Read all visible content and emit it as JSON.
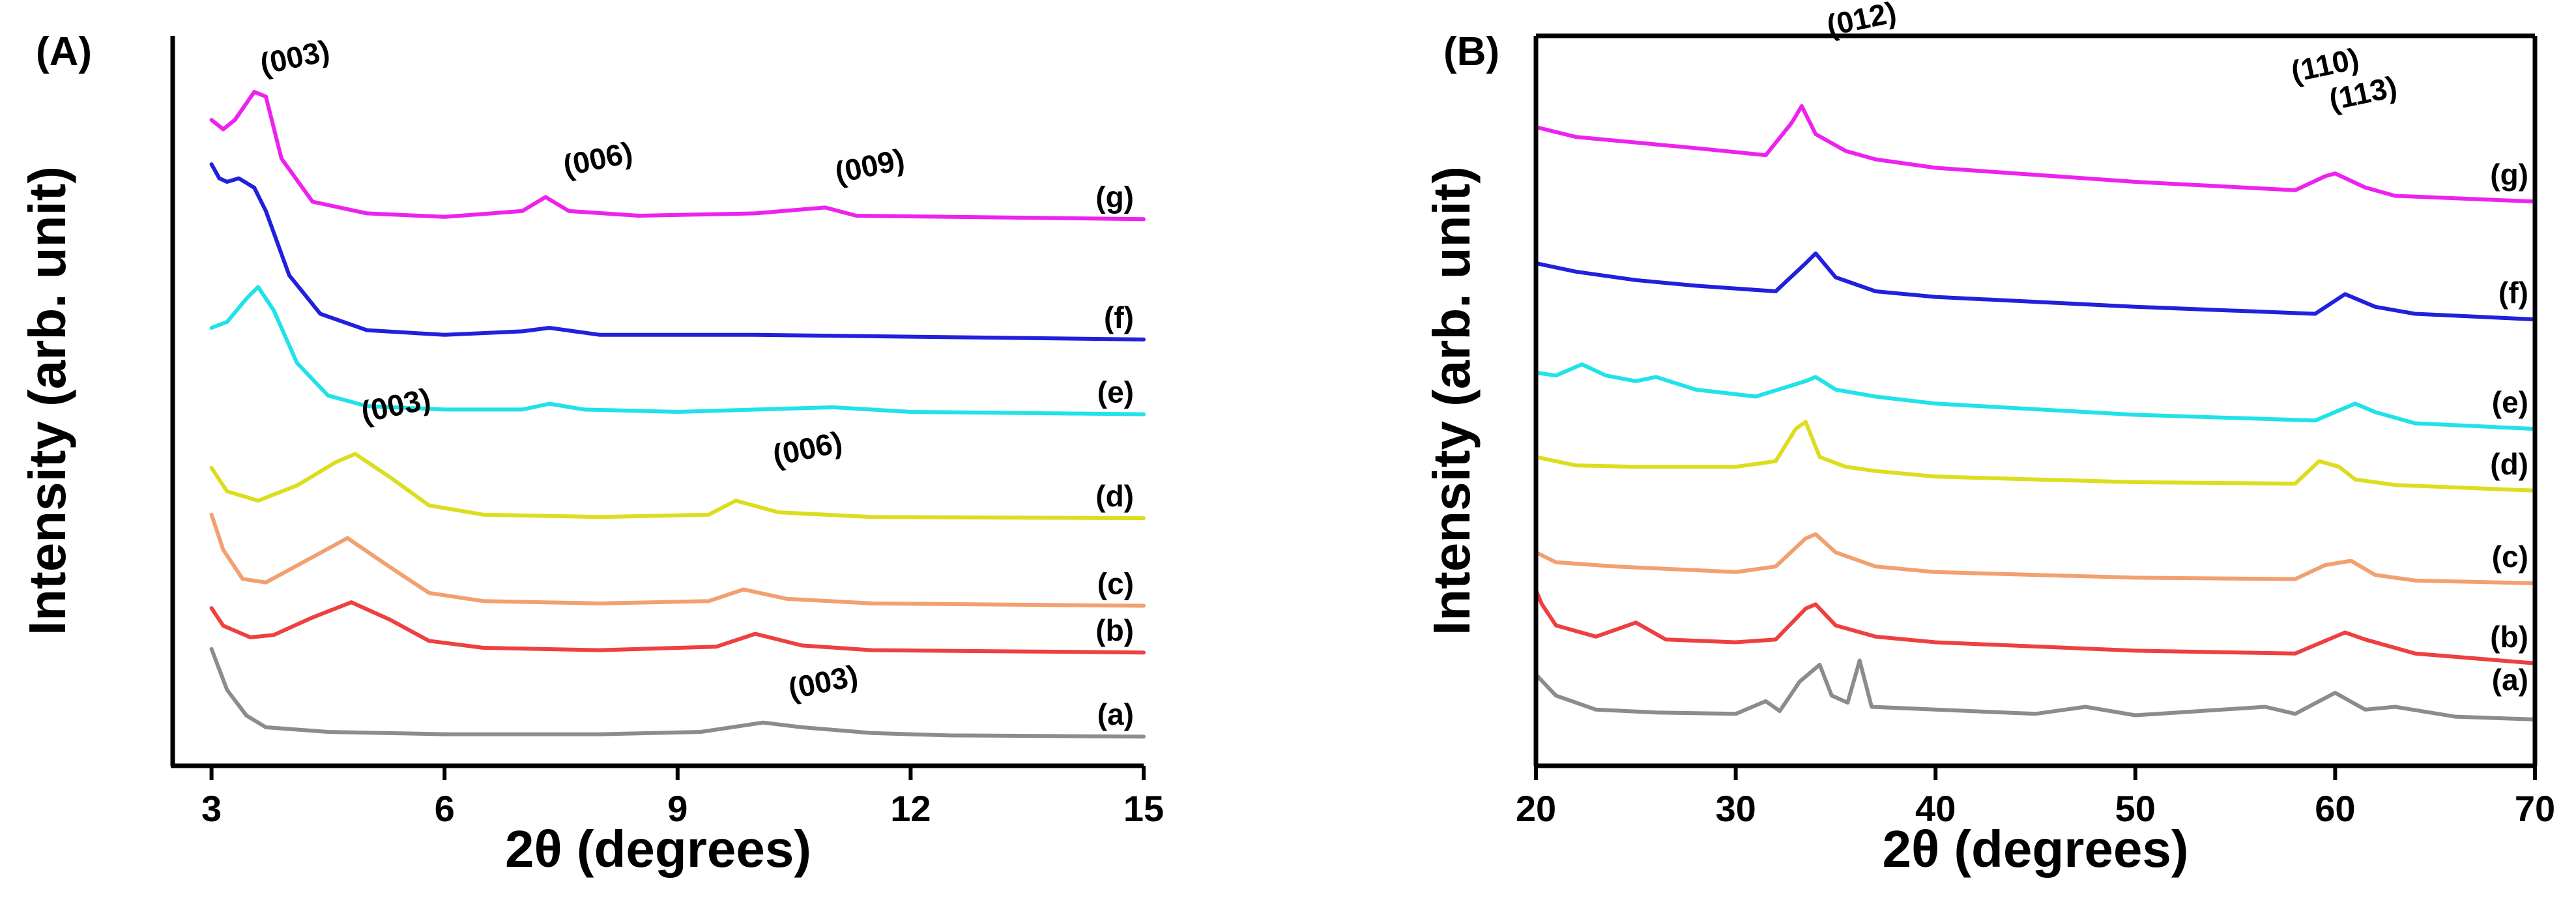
{
  "chart_data": [
    {
      "type": "line",
      "panel_label": "(A)",
      "xlabel": "2θ (degrees)",
      "ylabel": "Intensity (arb. unit)",
      "xlim": [
        2.5,
        15
      ],
      "x_ticks": [
        3,
        6,
        9,
        12,
        15
      ],
      "x_tick_labels": [
        "3",
        "6",
        "9",
        "12",
        "15"
      ],
      "yticks_shown": false,
      "series": [
        {
          "name": "(a)",
          "color": "#8c8c8c",
          "x": [
            3.0,
            3.2,
            3.45,
            3.7,
            4.5,
            6,
            8,
            9.3,
            9.9,
            10.1,
            10.6,
            11.5,
            12.5,
            15
          ],
          "y": [
            0.85,
            0.5,
            0.28,
            0.18,
            0.14,
            0.12,
            0.12,
            0.14,
            0.2,
            0.22,
            0.18,
            0.13,
            0.11,
            0.1
          ]
        },
        {
          "name": "(b)",
          "color": "#ee4040",
          "x": [
            3.0,
            3.15,
            3.5,
            3.8,
            4.3,
            4.8,
            5.3,
            5.8,
            6.5,
            8,
            9.5,
            10.0,
            10.6,
            11.5,
            15
          ],
          "y": [
            1.2,
            1.05,
            0.95,
            0.97,
            1.12,
            1.25,
            1.1,
            0.92,
            0.86,
            0.84,
            0.87,
            0.98,
            0.88,
            0.84,
            0.82
          ]
        },
        {
          "name": "(c)",
          "color": "#f2a070",
          "x": [
            3.0,
            3.15,
            3.4,
            3.7,
            4.2,
            4.75,
            5.3,
            5.8,
            6.5,
            8,
            9.4,
            9.85,
            10.4,
            11.5,
            15
          ],
          "y": [
            2.0,
            1.7,
            1.45,
            1.42,
            1.6,
            1.8,
            1.55,
            1.33,
            1.26,
            1.24,
            1.26,
            1.36,
            1.28,
            1.24,
            1.22
          ]
        },
        {
          "name": "(d)",
          "color": "#dddd20",
          "x": [
            3.0,
            3.2,
            3.6,
            4.1,
            4.6,
            4.85,
            5.3,
            5.8,
            6.5,
            8,
            9.4,
            9.75,
            10.3,
            11.5,
            15
          ],
          "y": [
            2.4,
            2.2,
            2.12,
            2.25,
            2.45,
            2.52,
            2.32,
            2.08,
            2.0,
            1.98,
            2.0,
            2.12,
            2.02,
            1.98,
            1.97
          ]
        },
        {
          "name": "(e)",
          "color": "#20e2e8",
          "x": [
            3.0,
            3.2,
            3.45,
            3.6,
            3.8,
            4.1,
            4.5,
            5.0,
            6,
            7.0,
            7.35,
            7.8,
            9,
            11,
            12,
            15
          ],
          "y": [
            3.6,
            3.65,
            3.85,
            3.95,
            3.75,
            3.3,
            3.02,
            2.93,
            2.9,
            2.9,
            2.95,
            2.9,
            2.88,
            2.92,
            2.88,
            2.86
          ]
        },
        {
          "name": "(f)",
          "color": "#2020dd",
          "x": [
            3.0,
            3.1,
            3.2,
            3.35,
            3.55,
            3.7,
            4.0,
            4.4,
            5.0,
            6,
            7.0,
            7.35,
            8,
            10,
            15
          ],
          "y": [
            5.0,
            4.88,
            4.85,
            4.88,
            4.8,
            4.6,
            4.05,
            3.72,
            3.58,
            3.54,
            3.57,
            3.6,
            3.54,
            3.54,
            3.5
          ]
        },
        {
          "name": "(g)",
          "color": "#ee22ee",
          "x": [
            3.0,
            3.15,
            3.3,
            3.55,
            3.7,
            3.9,
            4.3,
            5.0,
            6,
            7.0,
            7.3,
            7.6,
            8.5,
            10,
            10.9,
            11.3,
            15
          ],
          "y": [
            5.38,
            5.3,
            5.38,
            5.62,
            5.58,
            5.05,
            4.68,
            4.58,
            4.55,
            4.6,
            4.72,
            4.6,
            4.56,
            4.58,
            4.63,
            4.56,
            4.53
          ]
        }
      ],
      "annotations": [
        {
          "text": "(003)",
          "x": 4.1,
          "y": 5.83
        },
        {
          "text": "(006)",
          "x": 8.0,
          "y": 4.96
        },
        {
          "text": "(009)",
          "x": 11.5,
          "y": 4.9
        },
        {
          "text": "(003)",
          "x": 5.4,
          "y": 2.85
        },
        {
          "text": "(006)",
          "x": 10.7,
          "y": 2.48
        },
        {
          "text": "(003)",
          "x": 10.9,
          "y": 0.48
        }
      ]
    },
    {
      "type": "line",
      "panel_label": "(B)",
      "xlabel": "2θ (degrees)",
      "ylabel": "Intensity (arb. unit)",
      "xlim": [
        20,
        70
      ],
      "x_ticks": [
        20,
        30,
        40,
        50,
        60,
        70
      ],
      "x_tick_labels": [
        "20",
        "30",
        "40",
        "50",
        "60",
        "70"
      ],
      "yticks_shown": false,
      "series": [
        {
          "name": "(a)",
          "color": "#8c8c8c",
          "x": [
            20,
            21,
            23,
            26,
            30,
            31.5,
            32.2,
            33.2,
            34.2,
            34.8,
            35.6,
            36.2,
            36.8,
            40,
            45,
            47.5,
            50,
            56.5,
            58,
            60,
            61.5,
            63,
            66,
            70
          ],
          "y": [
            0.35,
            0.2,
            0.1,
            0.08,
            0.07,
            0.16,
            0.09,
            0.3,
            0.42,
            0.2,
            0.15,
            0.45,
            0.12,
            0.1,
            0.07,
            0.12,
            0.06,
            0.12,
            0.07,
            0.22,
            0.1,
            0.12,
            0.05,
            0.03
          ]
        },
        {
          "name": "(b)",
          "color": "#ee4040",
          "x": [
            20,
            20.3,
            21,
            23,
            25,
            26.5,
            30,
            32,
            33.5,
            34,
            35,
            37,
            40,
            50,
            58,
            60.5,
            61.5,
            64,
            70
          ],
          "y": [
            0.95,
            0.85,
            0.7,
            0.62,
            0.72,
            0.6,
            0.58,
            0.6,
            0.82,
            0.85,
            0.7,
            0.62,
            0.58,
            0.52,
            0.5,
            0.65,
            0.6,
            0.5,
            0.43
          ]
        },
        {
          "name": "(c)",
          "color": "#f2a070",
          "x": [
            20,
            21,
            24,
            30,
            32,
            33.5,
            34,
            35,
            37,
            40,
            50,
            58,
            59.5,
            60.8,
            62,
            64,
            70
          ],
          "y": [
            1.22,
            1.15,
            1.12,
            1.08,
            1.12,
            1.32,
            1.35,
            1.22,
            1.12,
            1.08,
            1.04,
            1.03,
            1.13,
            1.16,
            1.06,
            1.02,
            1.0
          ]
        },
        {
          "name": "(d)",
          "color": "#dddd20",
          "x": [
            20,
            22,
            25,
            30,
            32,
            33.0,
            33.5,
            34.2,
            35.5,
            37,
            40,
            50,
            58,
            59.2,
            60.2,
            61,
            63,
            70
          ],
          "y": [
            1.9,
            1.84,
            1.83,
            1.83,
            1.87,
            2.1,
            2.15,
            1.9,
            1.83,
            1.8,
            1.76,
            1.72,
            1.71,
            1.87,
            1.83,
            1.74,
            1.7,
            1.66
          ]
        },
        {
          "name": "(e)",
          "color": "#20e2e8",
          "x": [
            20,
            21,
            22.3,
            23.5,
            25,
            26,
            28,
            31,
            33.5,
            34,
            35,
            37,
            40,
            50,
            59,
            61,
            62,
            64,
            70
          ],
          "y": [
            2.5,
            2.48,
            2.56,
            2.48,
            2.44,
            2.47,
            2.38,
            2.33,
            2.44,
            2.47,
            2.38,
            2.33,
            2.28,
            2.2,
            2.16,
            2.28,
            2.22,
            2.14,
            2.1
          ]
        },
        {
          "name": "(f)",
          "color": "#2020dd",
          "x": [
            20,
            22,
            25,
            28,
            32,
            33.5,
            34,
            35,
            37,
            40,
            50,
            59,
            60.5,
            62,
            64,
            70
          ],
          "y": [
            3.28,
            3.22,
            3.16,
            3.12,
            3.08,
            3.28,
            3.35,
            3.18,
            3.08,
            3.04,
            2.97,
            2.92,
            3.06,
            2.97,
            2.92,
            2.88
          ]
        },
        {
          "name": "(g)",
          "color": "#ee22ee",
          "x": [
            20,
            22,
            25,
            28,
            31.5,
            32.8,
            33.3,
            34.0,
            35.5,
            37,
            40,
            50,
            58,
            59.5,
            60,
            61.5,
            63,
            70
          ],
          "y": [
            4.25,
            4.18,
            4.14,
            4.1,
            4.05,
            4.28,
            4.4,
            4.2,
            4.08,
            4.02,
            3.96,
            3.86,
            3.8,
            3.9,
            3.92,
            3.82,
            3.76,
            3.72
          ]
        }
      ],
      "annotations": [
        {
          "text": "(012)",
          "x": 36.4,
          "y": 4.95
        },
        {
          "text": "(110)",
          "x": 59.6,
          "y": 4.62
        },
        {
          "text": "(113)",
          "x": 61.5,
          "y": 4.42
        }
      ]
    }
  ]
}
